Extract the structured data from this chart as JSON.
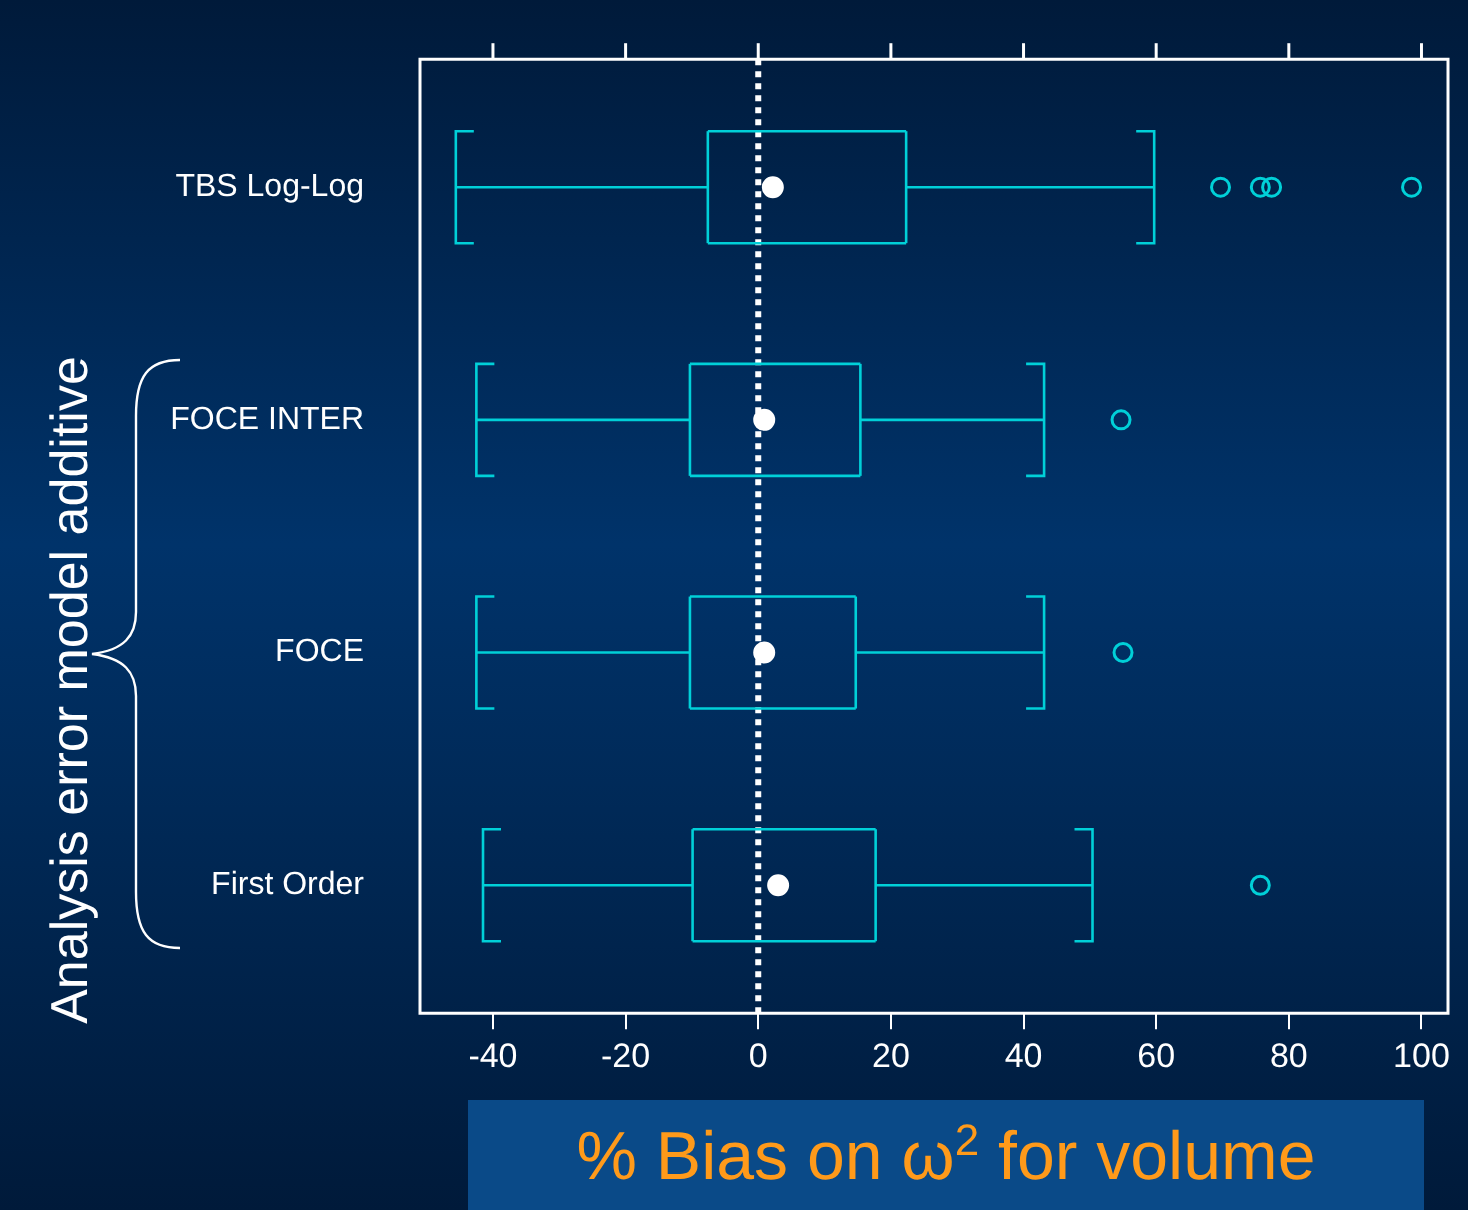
{
  "chart_data": {
    "type": "box",
    "orientation": "horizontal",
    "xlabel": "% Bias on ω$^{2}$ for volume",
    "ylabel": "Analysis error model additive",
    "categories": [
      "TBS Log-Log",
      "FOCE INTER",
      "FOCE",
      "First Order"
    ],
    "series": [
      {
        "color": "#00d0d8",
        "boxes": [
          {
            "low": -45.6,
            "q1": -7.6,
            "median": 2.2,
            "q3": 22.3,
            "high": 59.7,
            "outliers": [
              69.7,
              75.7,
              77.4,
              98.5
            ]
          },
          {
            "low": -42.5,
            "q1": -10.3,
            "median": 0.9,
            "q3": 15.4,
            "high": 43.1,
            "outliers": [
              54.7
            ]
          },
          {
            "low": -42.5,
            "q1": -10.3,
            "median": 0.9,
            "q3": 14.7,
            "high": 43.1,
            "outliers": [
              55
            ]
          },
          {
            "low": -41.5,
            "q1": -9.9,
            "median": 3.0,
            "q3": 17.7,
            "high": 50.4,
            "outliers": [
              75.7
            ]
          }
        ]
      }
    ],
    "xlim": [
      -51,
      104
    ],
    "xticks": [
      -40,
      -20,
      0,
      20,
      40,
      60,
      80,
      100
    ],
    "ref_lines": [
      {
        "axis": "x",
        "value": 0,
        "color": "#ffffff",
        "line_style": "dotted"
      }
    ]
  }
}
